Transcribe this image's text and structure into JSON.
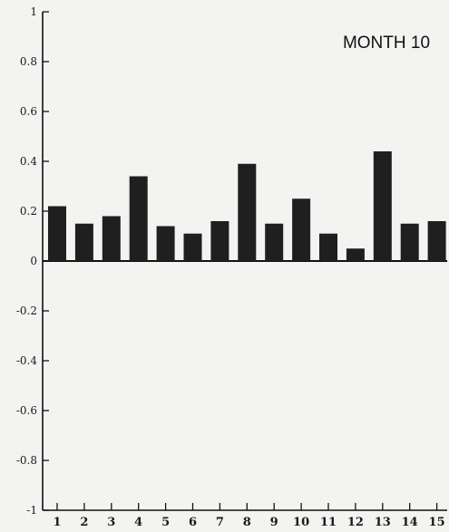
{
  "chart_data": {
    "type": "bar",
    "title": "MONTH 10",
    "xlabel": "",
    "ylabel": "",
    "categories": [
      "1",
      "2",
      "3",
      "4",
      "5",
      "6",
      "7",
      "8",
      "9",
      "10",
      "11",
      "12",
      "13",
      "14",
      "15"
    ],
    "values": [
      0.22,
      0.15,
      0.18,
      0.34,
      0.14,
      0.11,
      0.16,
      0.39,
      0.15,
      0.25,
      0.11,
      0.05,
      0.44,
      0.15,
      0.16
    ],
    "ylim": [
      -1,
      1
    ],
    "yticks": [
      "1",
      "0.8",
      "0.6",
      "0.4",
      "0.2",
      "0",
      "-0.2",
      "-0.4",
      "-0.6",
      "-0.8",
      "-1"
    ],
    "bar_color": "#1f1f1f",
    "grid": false
  }
}
